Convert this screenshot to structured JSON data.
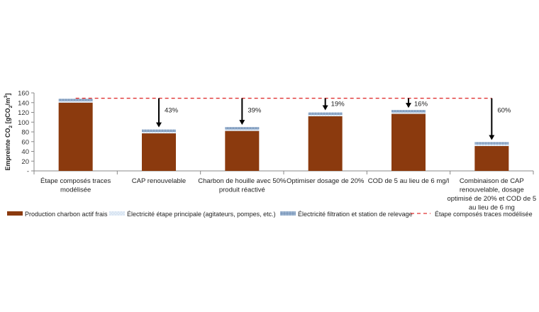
{
  "chart_data": {
    "type": "bar",
    "stacked": true,
    "ylabel": "Empreinte CO2 [gCO2/m³]",
    "ylabel_parts": [
      "Empreinte CO",
      "2",
      " [gCO",
      "2",
      "/m",
      "3",
      "]"
    ],
    "ylim": [
      0,
      160
    ],
    "yticks": [
      "-",
      "20",
      "40",
      "60",
      "80",
      "100",
      "120",
      "140",
      "160"
    ],
    "grid": false,
    "legend_position": "bottom",
    "categories": [
      [
        "Étape composés traces",
        "modélisée"
      ],
      [
        "CAP renouvelable"
      ],
      [
        "Charbon de houille avec 50%",
        "produit réactivé"
      ],
      [
        "Optimiser dosage de 20%"
      ],
      [
        "COD de 5 au lieu de 6 mg/l"
      ],
      [
        "Combinaison de CAP",
        "renouvelable, dosage",
        "optimisé de 20% et COD de 5",
        "au lieu de 6 mg"
      ]
    ],
    "series": [
      {
        "name": "Production charbon actif frais",
        "color": "#8B3A0E",
        "values": [
          140,
          77,
          82,
          112,
          117,
          51
        ]
      },
      {
        "name": "Électricité étape principale (agitateurs, pompes, etc.)",
        "color": "#dde8f4",
        "values": [
          3,
          3,
          3,
          3,
          3,
          3
        ]
      },
      {
        "name": "Électricité filtration et station de relevage",
        "color": "#8fa9c8",
        "values": [
          5,
          5,
          5,
          5,
          5,
          5
        ]
      }
    ],
    "reference_line": {
      "name": "Étape composés traces modélisée",
      "value": 149,
      "color": "#e03030",
      "style": "dashed"
    },
    "reductions": [
      "",
      "43%",
      "39%",
      "19%",
      "16%",
      "60%"
    ]
  }
}
